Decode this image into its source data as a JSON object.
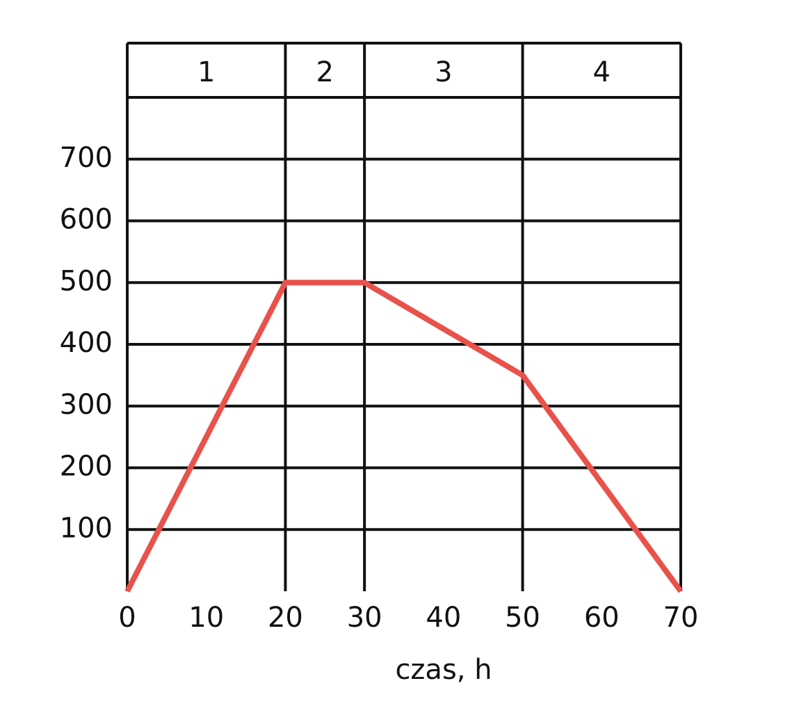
{
  "chart_data": {
    "type": "line",
    "x": [
      0,
      20,
      30,
      50,
      70
    ],
    "series": [
      {
        "color": "#e8524a",
        "values": [
          0,
          500,
          500,
          350,
          0
        ]
      }
    ],
    "xlim": [
      0,
      70
    ],
    "xticks": [
      0,
      10,
      20,
      30,
      40,
      50,
      60,
      70
    ],
    "ylim": [
      0,
      800
    ],
    "yticks": [
      100,
      200,
      300,
      400,
      500,
      600,
      700
    ],
    "x_label": "czas, h",
    "phases": [
      {
        "label": "1",
        "start": 0,
        "end": 20
      },
      {
        "label": "2",
        "start": 20,
        "end": 30
      },
      {
        "label": "3",
        "start": 30,
        "end": 50
      },
      {
        "label": "4",
        "start": 50,
        "end": 70
      }
    ],
    "grid": true
  }
}
